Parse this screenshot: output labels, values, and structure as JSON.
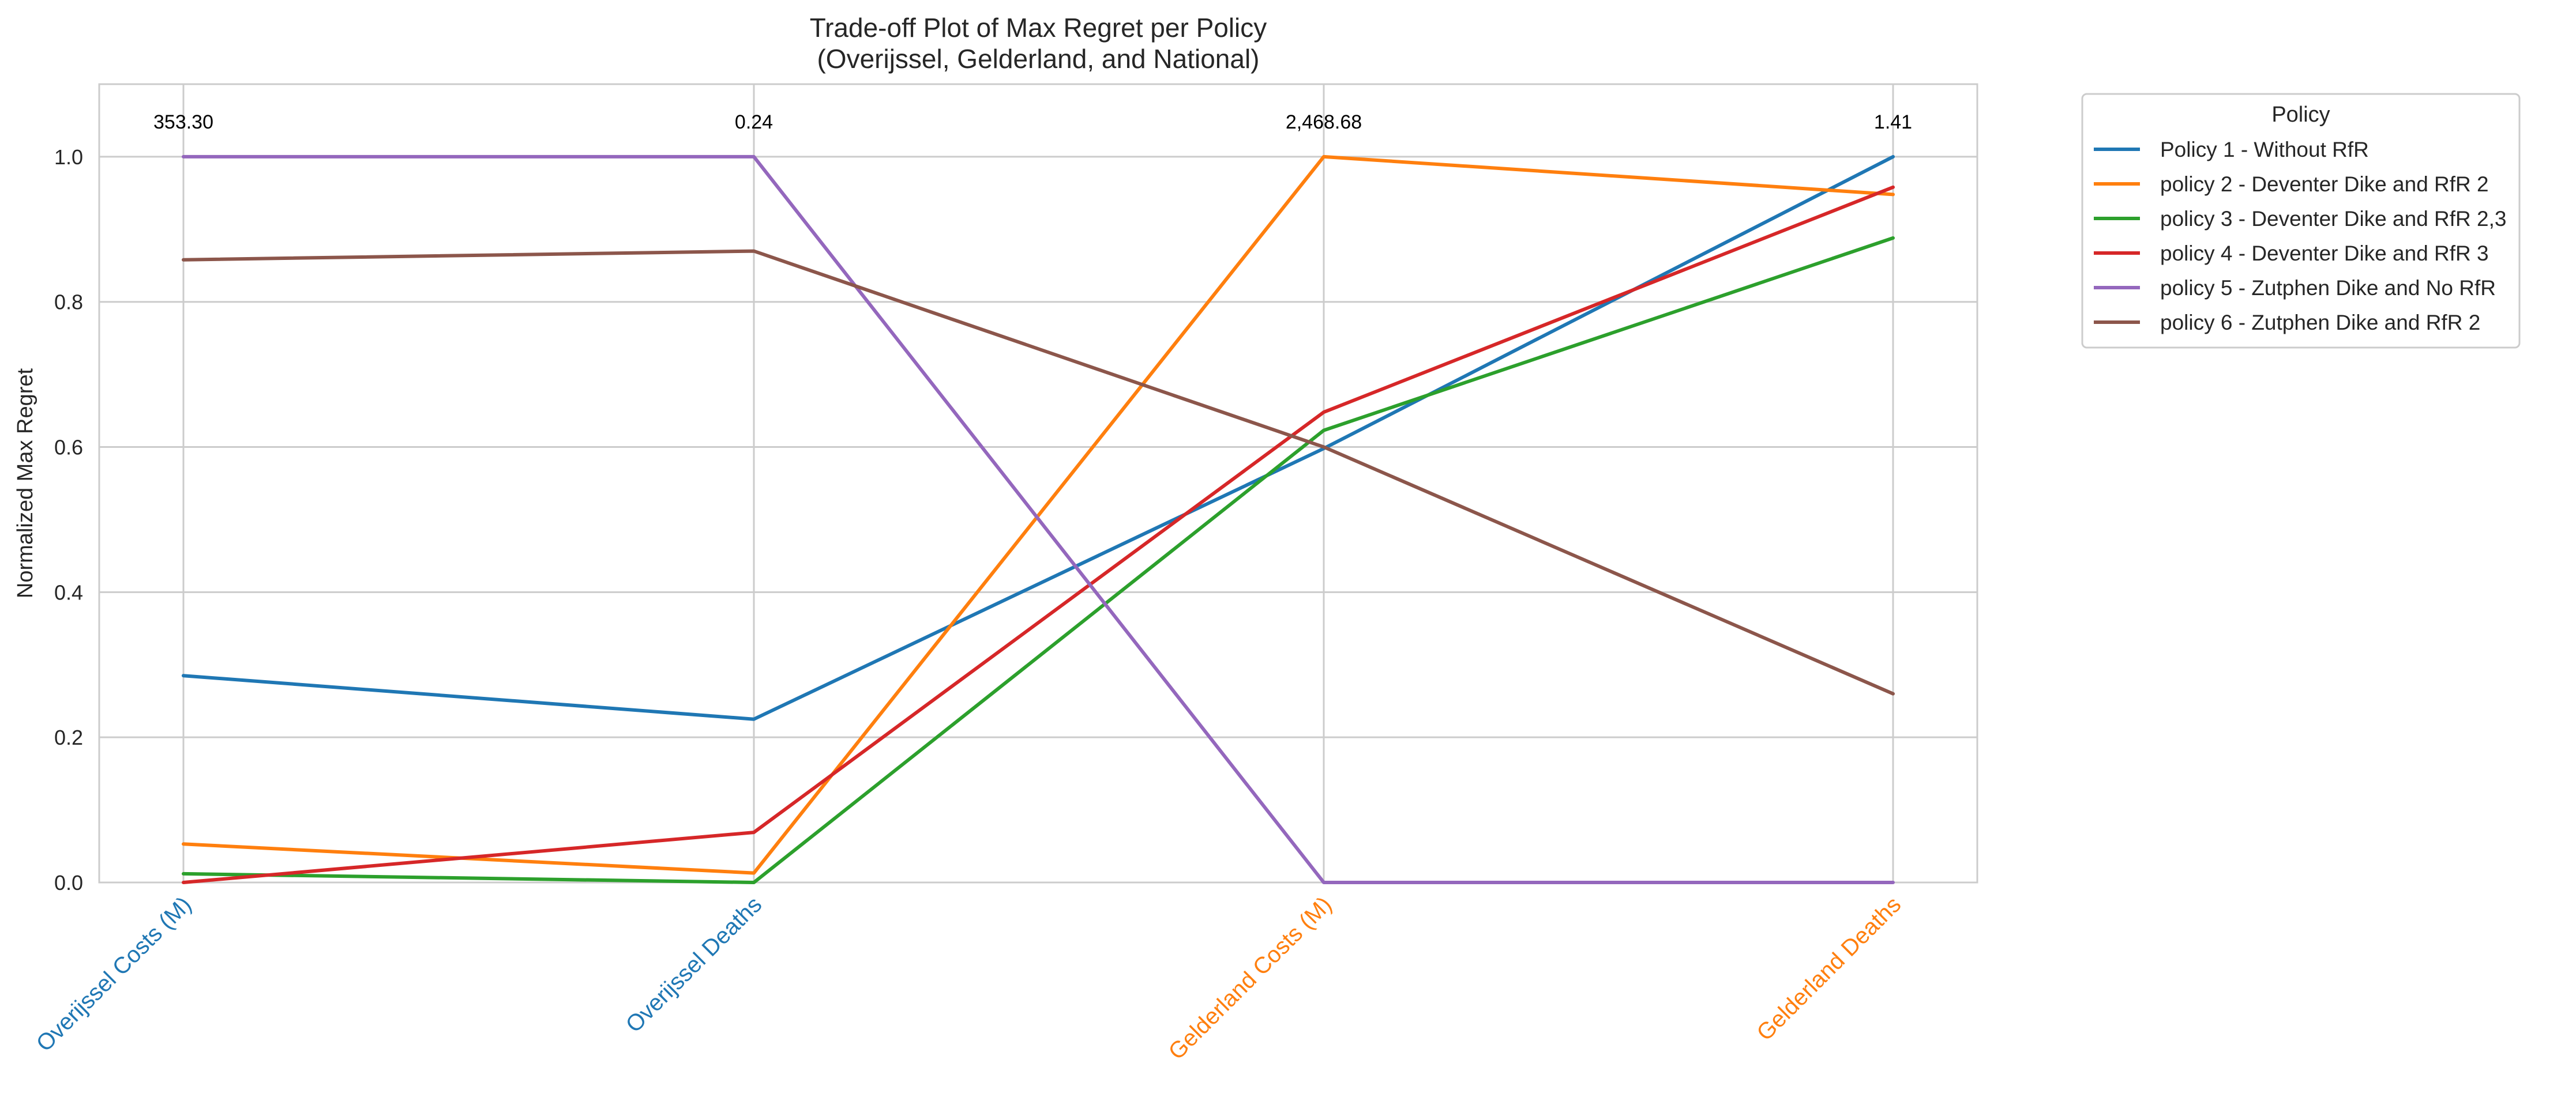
{
  "chart_data": {
    "type": "line",
    "title": [
      "Trade-off Plot of Max Regret per Policy",
      "(Overijssel, Gelderland, and National)"
    ],
    "ylabel": "Normalized Max Regret",
    "ylim": [
      0.0,
      1.1
    ],
    "yticks": [
      {
        "value": 0.0,
        "label": "0.0"
      },
      {
        "value": 0.2,
        "label": "0.2"
      },
      {
        "value": 0.4,
        "label": "0.4"
      },
      {
        "value": 0.6,
        "label": "0.6"
      },
      {
        "value": 0.8,
        "label": "0.8"
      },
      {
        "value": 1.0,
        "label": "1.0"
      }
    ],
    "grid": true,
    "axes": [
      {
        "label": "Overijssel Costs (M)",
        "max_label": "353.30",
        "color": "#1f77b4"
      },
      {
        "label": "Overijssel Deaths",
        "max_label": "0.24",
        "color": "#1f77b4"
      },
      {
        "label": "Gelderland Costs (M)",
        "max_label": "2,468.68",
        "color": "#ff7f0e"
      },
      {
        "label": "Gelderland Deaths",
        "max_label": "1.41",
        "color": "#ff7f0e"
      }
    ],
    "legend": {
      "title": "Policy",
      "placement": "outside-upper-right"
    },
    "series": [
      {
        "name": "Policy 1 - Without RfR",
        "color": "#1f77b4",
        "values": [
          0.285,
          0.225,
          0.598,
          1.0
        ]
      },
      {
        "name": "policy 2 - Deventer Dike and RfR 2",
        "color": "#ff7f0e",
        "values": [
          0.053,
          0.013,
          1.0,
          0.948
        ]
      },
      {
        "name": "policy 3 - Deventer Dike and RfR 2,3",
        "color": "#2ca02c",
        "values": [
          0.012,
          0.0,
          0.623,
          0.888
        ]
      },
      {
        "name": "policy 4 - Deventer Dike and RfR 3",
        "color": "#d62728",
        "values": [
          0.0,
          0.069,
          0.648,
          0.958
        ]
      },
      {
        "name": "policy 5 - Zutphen Dike and No RfR",
        "color": "#9467bd",
        "values": [
          1.0,
          1.0,
          0.0,
          0.0
        ]
      },
      {
        "name": "policy 6 - Zutphen Dike and RfR 2",
        "color": "#8c564b",
        "values": [
          0.858,
          0.87,
          0.6,
          0.26
        ]
      }
    ]
  }
}
